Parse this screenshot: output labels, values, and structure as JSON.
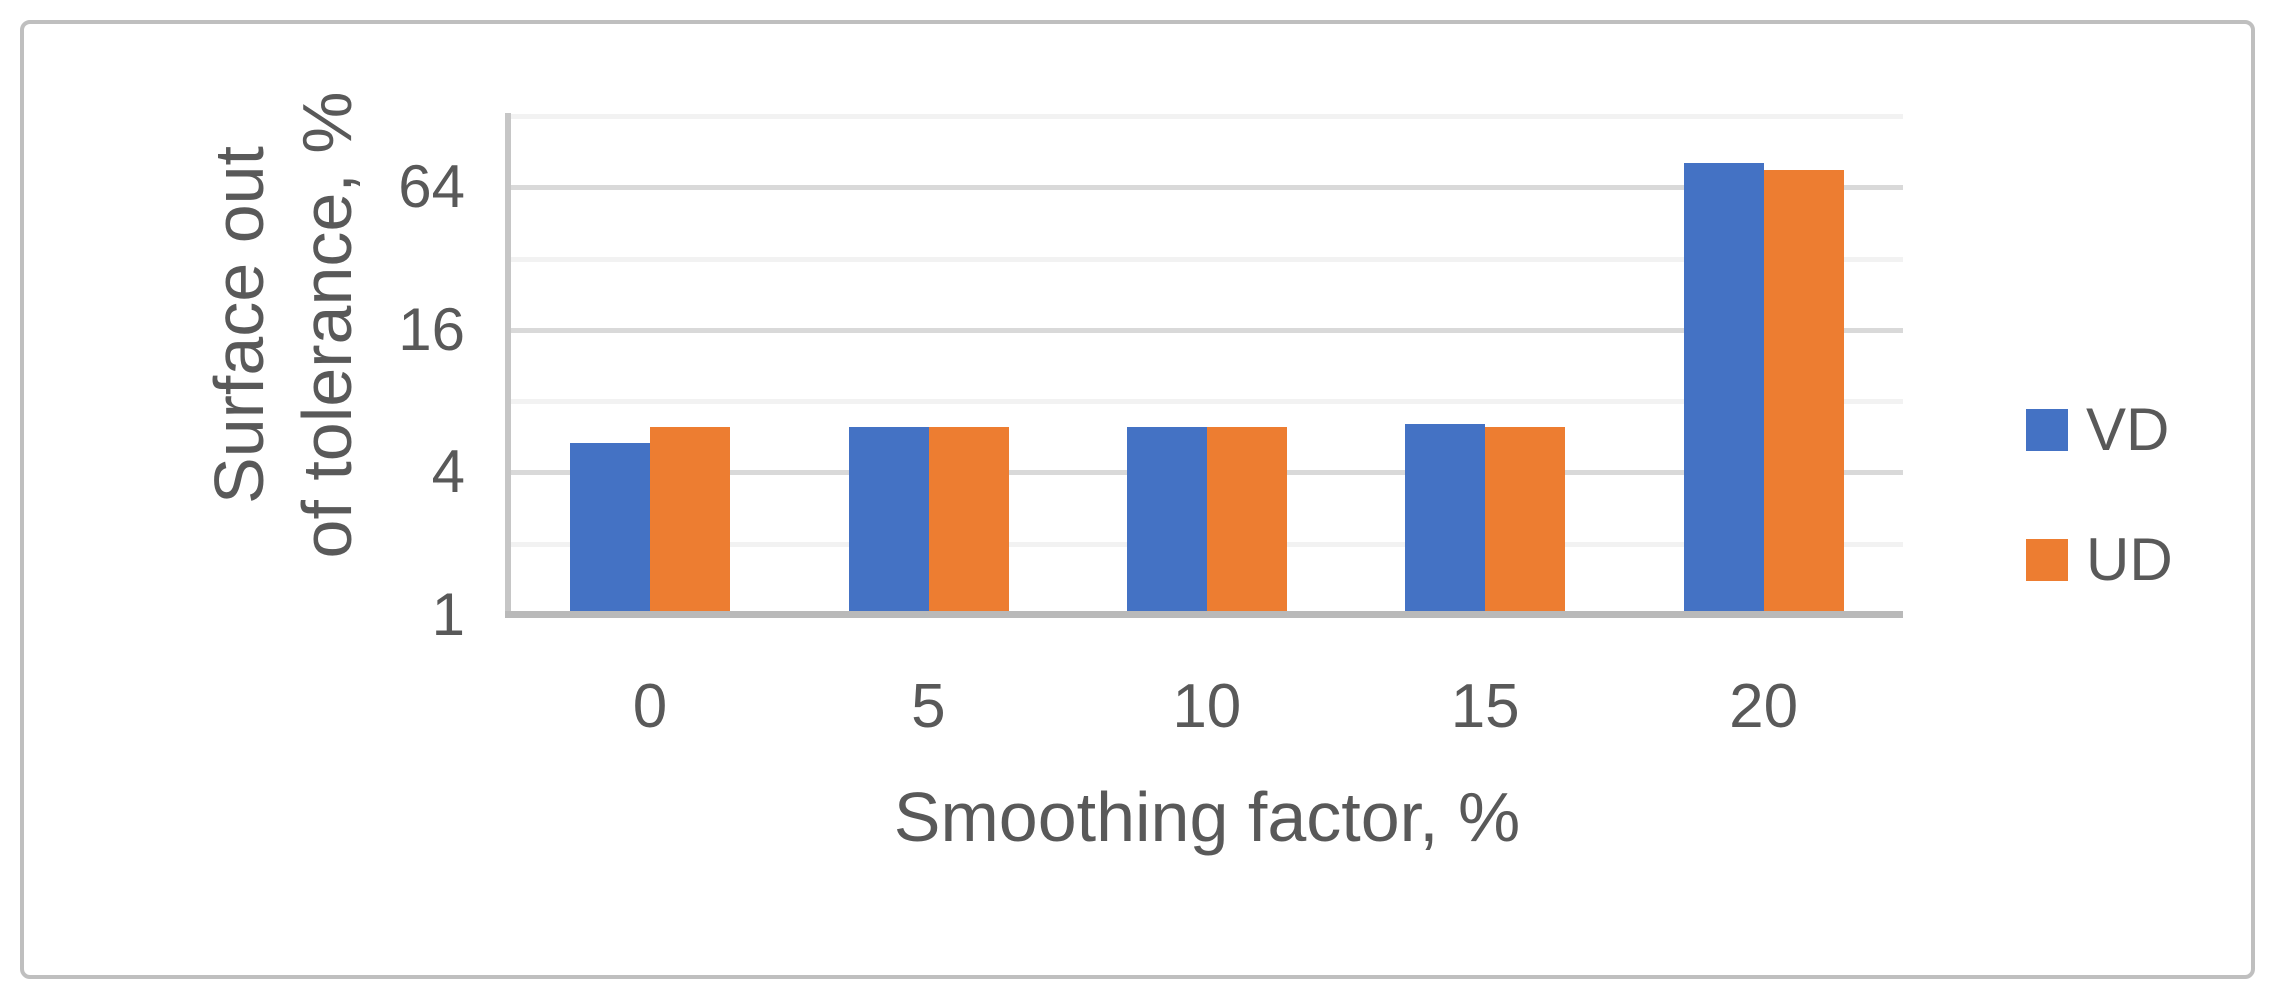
{
  "figure": {
    "background": "#ffffff",
    "border_color": "#bfbfbf"
  },
  "colors": {
    "text": "#595959",
    "major_grid": "#d9d9d9",
    "minor_grid": "#f2f2f2",
    "axis_line": "#bfbfbf",
    "series_vd": "#4472C4",
    "series_ud": "#ED7D31"
  },
  "chart_data": {
    "type": "bar",
    "title": "",
    "xlabel": "Smoothing factor, %",
    "ylabel_lines": [
      "Surface out",
      "of tolerance, %"
    ],
    "categories": [
      "0",
      "5",
      "10",
      "15",
      "20"
    ],
    "series": [
      {
        "name": "VD",
        "color": "#4472C4",
        "values": [
          5.3,
          6.2,
          6.2,
          6.4,
          81
        ]
      },
      {
        "name": "UD",
        "color": "#ED7D31",
        "values": [
          6.2,
          6.2,
          6.2,
          6.2,
          76
        ]
      }
    ],
    "y_axis": {
      "scale": "log2",
      "min": 1,
      "max": 128,
      "tick_values": [
        64,
        16,
        4,
        1
      ],
      "tick_labels": [
        "64",
        "16",
        "4",
        "1"
      ],
      "major_gridlines": [
        4,
        16,
        64
      ],
      "minor_gridlines": [
        2,
        8,
        32,
        128
      ]
    },
    "grid": true,
    "legend_position": "right"
  },
  "legend": {
    "items": [
      {
        "label": "VD",
        "color": "#4472C4"
      },
      {
        "label": "UD",
        "color": "#ED7D31"
      }
    ]
  }
}
